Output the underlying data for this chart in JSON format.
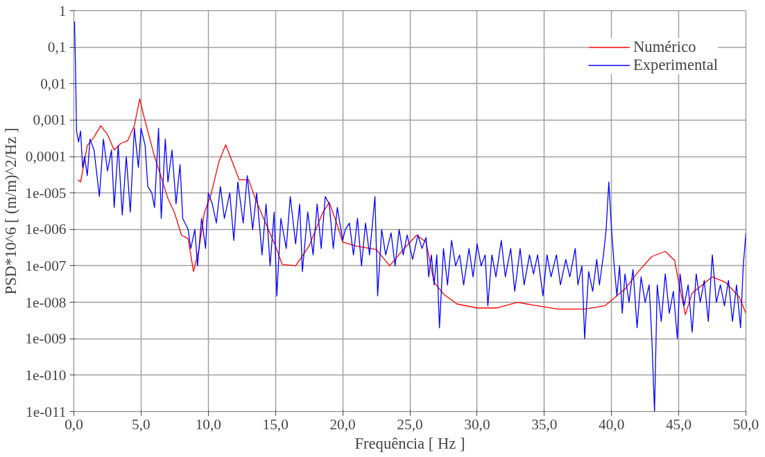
{
  "chart_data": {
    "type": "line",
    "xlabel": "Frequência [ Hz ]",
    "ylabel": "PSD*10^6 [ (m/m)^2/Hz ]",
    "log": "y",
    "grid": true,
    "legend": "top right",
    "line_style": "solid",
    "marker": "none",
    "xlim": [
      0,
      50
    ],
    "ylim": [
      1e-11,
      1
    ],
    "xticks": [
      {
        "value": 0,
        "label": "0,0"
      },
      {
        "value": 5,
        "label": "5,0"
      },
      {
        "value": 10,
        "label": "10,0"
      },
      {
        "value": 15,
        "label": "15,0"
      },
      {
        "value": 20,
        "label": "20,0"
      },
      {
        "value": 25,
        "label": "25,0"
      },
      {
        "value": 30,
        "label": "30,0"
      },
      {
        "value": 35,
        "label": "35,0"
      },
      {
        "value": 40,
        "label": "40,0"
      },
      {
        "value": 45,
        "label": "45,0"
      },
      {
        "value": 50,
        "label": "50,0"
      }
    ],
    "yticks": [
      1,
      {
        "value": 0.1,
        "label": "0,1"
      },
      {
        "value": 0.01,
        "label": "0,01"
      },
      {
        "value": 0.001,
        "label": "0,001"
      },
      {
        "value": 0.0001,
        "label": "0,0001"
      },
      {
        "value": 1e-05,
        "label": "1e-005"
      },
      {
        "value": 1e-06,
        "label": "1e-006"
      },
      {
        "value": 1e-07,
        "label": "1e-007"
      },
      {
        "value": 1e-08,
        "label": "1e-008"
      },
      {
        "value": 1e-09,
        "label": "1e-009"
      },
      {
        "value": 1e-10,
        "label": "1e-010"
      },
      {
        "value": 1e-11,
        "label": "1e-011"
      }
    ],
    "series": [
      {
        "name": "Numérico",
        "color": "#ff0000",
        "x": [
          0.3,
          0.5,
          1.0,
          1.5,
          2.0,
          2.5,
          3.0,
          3.5,
          4.0,
          4.5,
          4.9,
          5.2,
          5.5,
          6.0,
          6.5,
          7.0,
          7.5,
          8.0,
          8.5,
          8.9,
          9.3,
          9.7,
          10.2,
          10.8,
          11.3,
          11.8,
          12.3,
          13.0,
          13.5,
          14.2,
          15.0,
          15.5,
          16.5,
          17.5,
          18.5,
          19.0,
          19.5,
          20.0,
          21.0,
          22.5,
          23.5,
          24.5,
          25.5,
          26.2,
          26.8,
          27.5,
          28.5,
          30,
          31.5,
          33,
          34.5,
          36,
          38,
          39.5,
          41,
          42,
          43,
          44,
          44.7,
          45.0,
          45.5,
          46,
          47.5,
          48.5,
          49.5,
          50
        ],
        "values": [
          2.3e-05,
          2e-05,
          0.0002,
          0.00034,
          0.0007,
          0.0004,
          0.00015,
          0.00023,
          0.00027,
          0.0007,
          0.0038,
          0.0013,
          0.0005,
          0.0001,
          2.7e-05,
          7e-06,
          2.8e-06,
          7e-07,
          5.6e-07,
          7e-08,
          2.8e-07,
          2.8e-06,
          9e-06,
          7.4e-05,
          0.00021,
          7e-05,
          2.3e-05,
          2.3e-05,
          7e-06,
          1.7e-06,
          3.5e-07,
          1.1e-07,
          1e-07,
          3.5e-07,
          2.8e-06,
          5.5e-06,
          1.7e-06,
          4.5e-07,
          3.5e-07,
          2.8e-07,
          1e-07,
          2.8e-07,
          7e-07,
          4.5e-07,
          3.5e-08,
          1.7e-08,
          9e-09,
          7e-09,
          7e-09,
          1e-08,
          8e-09,
          6.5e-09,
          6.5e-09,
          8e-09,
          2.3e-08,
          7e-08,
          1.8e-07,
          2.5e-07,
          1.4e-07,
          3.5e-08,
          4.6e-09,
          1.8e-08,
          5e-08,
          3.5e-08,
          1.4e-08,
          5e-09
        ]
      },
      {
        "name": "Experimental",
        "color": "#0000ff",
        "x": [
          0.05,
          0.12,
          0.2,
          0.35,
          0.5,
          0.65,
          0.8,
          1.0,
          1.2,
          1.5,
          1.9,
          2.2,
          2.5,
          2.8,
          3.0,
          3.3,
          3.6,
          3.9,
          4.2,
          4.5,
          4.8,
          5.0,
          5.3,
          5.5,
          5.8,
          6.0,
          6.3,
          6.5,
          6.8,
          7.0,
          7.3,
          7.6,
          7.9,
          8.1,
          8.5,
          8.7,
          9.0,
          9.2,
          9.5,
          9.8,
          10.0,
          10.3,
          10.6,
          10.9,
          11.2,
          11.6,
          11.9,
          12.2,
          12.6,
          12.9,
          13.3,
          13.6,
          14.0,
          14.3,
          14.6,
          14.9,
          15.1,
          15.4,
          15.8,
          16.1,
          16.5,
          16.8,
          17.0,
          17.4,
          17.8,
          18.1,
          18.4,
          18.7,
          19.0,
          19.3,
          19.6,
          20.0,
          20.2,
          20.5,
          20.8,
          21.1,
          21.4,
          21.7,
          22.0,
          22.4,
          22.6,
          22.9,
          23.2,
          23.6,
          23.9,
          24.2,
          24.5,
          24.8,
          25.2,
          25.6,
          25.9,
          26.2,
          26.4,
          26.6,
          26.8,
          27.0,
          27.2,
          27.5,
          27.8,
          28.1,
          28.4,
          28.7,
          29.0,
          29.4,
          29.7,
          30.0,
          30.3,
          30.6,
          30.8,
          31.1,
          31.4,
          31.8,
          32.1,
          32.5,
          32.8,
          33.2,
          33.5,
          33.9,
          34.2,
          34.5,
          34.9,
          35.2,
          35.5,
          35.9,
          36.2,
          36.6,
          36.9,
          37.3,
          37.5,
          37.8,
          38.0,
          38.3,
          38.6,
          38.9,
          39.1,
          39.4,
          39.6,
          39.8,
          40.0,
          40.2,
          40.4,
          40.6,
          40.8,
          41.0,
          41.3,
          41.6,
          41.9,
          42.2,
          42.5,
          42.8,
          43.0,
          43.2,
          43.4,
          43.7,
          44.0,
          44.3,
          44.6,
          44.9,
          45.1,
          45.4,
          45.7,
          46.0,
          46.3,
          46.6,
          46.9,
          47.2,
          47.5,
          47.8,
          48.1,
          48.4,
          48.7,
          49.0,
          49.3,
          49.6,
          49.8,
          50.0
        ],
        "values": [
          0.5,
          0.03,
          0.0005,
          0.00025,
          0.0005,
          5e-05,
          0.0001,
          3e-05,
          0.0003,
          0.00015,
          8e-06,
          0.0003,
          4e-05,
          0.00015,
          4e-06,
          0.0002,
          2.5e-06,
          0.0001,
          3e-06,
          0.0006,
          5e-05,
          0.0006,
          0.0002,
          1.5e-05,
          1e-05,
          4e-06,
          0.0006,
          2e-06,
          0.0003,
          2e-05,
          0.00015,
          5e-06,
          6e-05,
          2e-06,
          1e-06,
          3e-07,
          1e-06,
          1e-07,
          2e-06,
          3e-07,
          1e-05,
          5e-06,
          1.5e-06,
          1.5e-05,
          2e-06,
          1e-05,
          5e-07,
          2e-05,
          1.5e-06,
          3e-05,
          1e-06,
          1e-05,
          2e-07,
          5e-06,
          1e-07,
          3e-06,
          1.5e-08,
          2e-06,
          3e-07,
          8e-06,
          4e-07,
          5e-06,
          7e-08,
          3e-06,
          2e-07,
          5e-06,
          3e-07,
          8e-06,
          5e-06,
          3e-07,
          4e-06,
          5e-07,
          1e-06,
          1.5e-06,
          2e-07,
          2e-06,
          1e-07,
          1.5e-06,
          2e-07,
          8e-06,
          1.5e-08,
          1e-06,
          2e-07,
          8e-07,
          1e-07,
          1e-06,
          2e-07,
          7e-07,
          1.5e-07,
          7e-07,
          3e-07,
          6e-07,
          5e-08,
          2e-07,
          3e-08,
          2e-07,
          2e-09,
          3e-07,
          3e-08,
          5e-07,
          1e-07,
          2e-07,
          3e-08,
          3e-07,
          5e-08,
          4e-07,
          1e-07,
          2e-07,
          8e-09,
          2e-07,
          5e-08,
          5e-07,
          5e-08,
          3e-07,
          2e-08,
          3e-07,
          3e-08,
          2e-07,
          6e-08,
          2e-07,
          1.5e-08,
          2e-07,
          5e-08,
          2e-07,
          3e-08,
          1.5e-07,
          5e-08,
          3e-07,
          3e-08,
          1e-07,
          1e-09,
          7e-08,
          2e-08,
          1.5e-07,
          3e-08,
          2e-07,
          1e-06,
          2e-05,
          1e-06,
          1e-07,
          1.5e-08,
          1e-07,
          5e-09,
          6e-08,
          1e-08,
          8e-08,
          2e-09,
          5e-08,
          1e-08,
          3e-08,
          1e-09,
          1e-11,
          3e-08,
          3e-09,
          6e-08,
          5e-09,
          2e-08,
          1e-09,
          6e-08,
          8e-09,
          3e-08,
          1.5e-09,
          6e-08,
          1e-08,
          4e-08,
          3e-09,
          2e-07,
          1e-08,
          3e-08,
          8e-09,
          4e-08,
          3e-09,
          3e-08,
          2e-09,
          1e-07,
          8e-07
        ]
      }
    ]
  }
}
